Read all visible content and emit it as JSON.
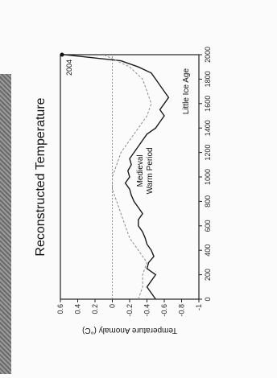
{
  "chart_data": {
    "type": "line",
    "title": "Reconstructed Temperature",
    "ylabel": "Temperature Anomaly (°C)",
    "xlabel": "",
    "x_ticks": [
      "0",
      "200",
      "400",
      "600",
      "800",
      "1000",
      "1200",
      "1400",
      "1600",
      "1800",
      "2000"
    ],
    "y_ticks": [
      "0.6",
      "0.4",
      "0.2",
      "0",
      "-0.2",
      "-0.4",
      "-0.6",
      "-0.8",
      "-1"
    ],
    "xlim": [
      0,
      2000
    ],
    "ylim": [
      -1,
      0.6
    ],
    "annotations": {
      "medieval": [
        "Medieval",
        "Warm Period"
      ],
      "little_ice_age": "Little Ice Age",
      "end_marker": "2004"
    },
    "series": [
      {
        "color": "#1a1a1a",
        "x": [
          0,
          50,
          100,
          150,
          200,
          250,
          300,
          350,
          400,
          450,
          500,
          550,
          600,
          650,
          700,
          750,
          800,
          850,
          900,
          950,
          1000,
          1050,
          1100,
          1150,
          1200,
          1250,
          1300,
          1350,
          1400,
          1450,
          1500,
          1550,
          1600,
          1650,
          1700,
          1750,
          1800,
          1850,
          1900,
          1950,
          2004
        ],
        "y": [
          -0.5,
          -0.45,
          -0.4,
          -0.45,
          -0.5,
          -0.4,
          -0.42,
          -0.48,
          -0.45,
          -0.4,
          -0.38,
          -0.35,
          -0.3,
          -0.3,
          -0.35,
          -0.3,
          -0.25,
          -0.22,
          -0.2,
          -0.15,
          -0.2,
          -0.18,
          -0.22,
          -0.2,
          -0.25,
          -0.3,
          -0.35,
          -0.4,
          -0.5,
          -0.55,
          -0.6,
          -0.55,
          -0.6,
          -0.65,
          -0.6,
          -0.55,
          -0.5,
          -0.45,
          -0.3,
          -0.1,
          0.6
        ]
      },
      {
        "color": "#8c8c8c",
        "x": [
          0,
          100,
          200,
          300,
          400,
          500,
          600,
          700,
          800,
          900,
          1000,
          1100,
          1200,
          1300,
          1400,
          1500,
          1600,
          1700,
          1800,
          1900,
          2000
        ],
        "y": [
          -0.3,
          -0.35,
          -0.35,
          -0.4,
          -0.3,
          -0.2,
          -0.15,
          -0.1,
          -0.05,
          0.0,
          0.0,
          -0.05,
          -0.1,
          -0.2,
          -0.3,
          -0.4,
          -0.45,
          -0.4,
          -0.35,
          -0.2,
          0.1
        ]
      }
    ]
  }
}
